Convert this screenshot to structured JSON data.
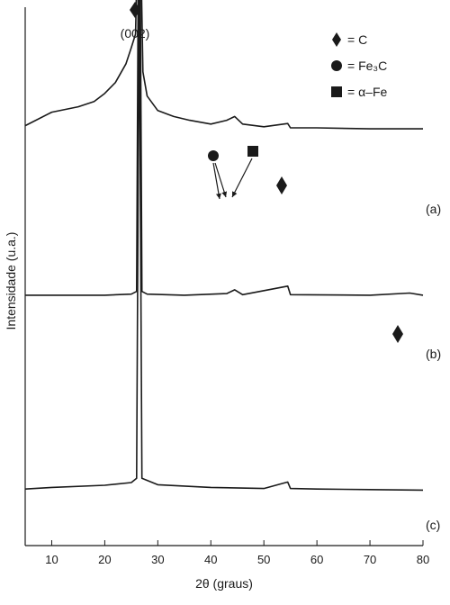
{
  "chart_data": {
    "type": "line",
    "xlabel": "2θ (graus)",
    "ylabel": "Intensidade (u.a.)",
    "xlim": [
      5,
      80
    ],
    "xticks": [
      10,
      20,
      30,
      40,
      50,
      60,
      70,
      80
    ],
    "yticks_shown": false,
    "grid": false,
    "legend_position": "top-right",
    "legend": [
      {
        "marker": "diamond",
        "text": "= C"
      },
      {
        "marker": "circle",
        "text": "= Fe₃C"
      },
      {
        "marker": "square",
        "text": "= α–Fe"
      }
    ],
    "series": [
      {
        "name": "(a)",
        "x": [
          5,
          10,
          15,
          18,
          20,
          22,
          24,
          25,
          25.8,
          26.2,
          26.5,
          26.8,
          27.2,
          28,
          30,
          33,
          36,
          40,
          43,
          44.5,
          46,
          50,
          54.5,
          55,
          60,
          70,
          80
        ],
        "y": [
          0.78,
          0.805,
          0.815,
          0.825,
          0.84,
          0.86,
          0.895,
          0.925,
          0.95,
          1.13,
          2.08,
          1.1,
          0.88,
          0.835,
          0.808,
          0.797,
          0.79,
          0.783,
          0.79,
          0.797,
          0.783,
          0.778,
          0.784,
          0.776,
          0.776,
          0.774,
          0.774
        ]
      },
      {
        "name": "(b)",
        "x": [
          5,
          20,
          25,
          26,
          26.5,
          27,
          28,
          35,
          43,
          44.5,
          46,
          54.5,
          55,
          70,
          77.5,
          80
        ],
        "y": [
          0.465,
          0.465,
          0.467,
          0.472,
          1.42,
          0.472,
          0.467,
          0.465,
          0.468,
          0.475,
          0.466,
          0.482,
          0.466,
          0.465,
          0.469,
          0.465
        ]
      },
      {
        "name": "(c)",
        "x": [
          5,
          10,
          20,
          25,
          26,
          26.5,
          27,
          30,
          40,
          50,
          54.5,
          55,
          60,
          70,
          80
        ],
        "y": [
          0.105,
          0.108,
          0.112,
          0.117,
          0.125,
          1.045,
          0.125,
          0.113,
          0.108,
          0.106,
          0.118,
          0.106,
          0.105,
          0.104,
          0.103
        ]
      }
    ],
    "annotations": [
      {
        "text": "(002)",
        "x": 26.5,
        "marker": "diamond"
      },
      {
        "marker": "circle",
        "x": 43,
        "arrows_to": [
          43,
          44
        ]
      },
      {
        "marker": "square",
        "x": 44.5,
        "arrows_to": [
          44.5
        ]
      },
      {
        "marker": "diamond",
        "x": 54.5,
        "series": "(a)"
      },
      {
        "marker": "diamond",
        "x": 77.5,
        "series": "(b)"
      }
    ]
  }
}
